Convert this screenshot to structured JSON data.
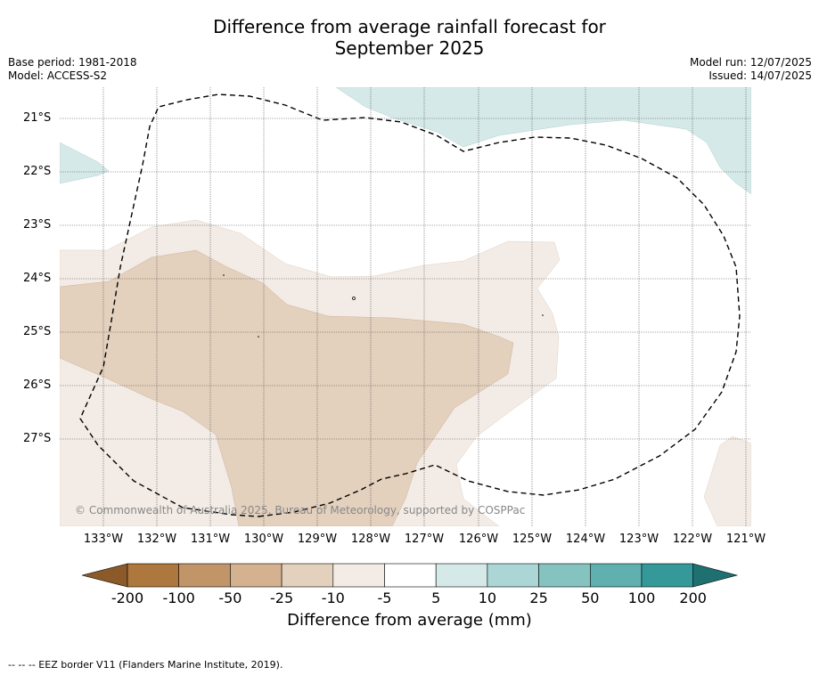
{
  "title": "Difference from average rainfall forecast for",
  "title_line2": "September 2025",
  "meta_left": {
    "base_period": "Base period: 1981-2018",
    "model": "Model: ACCESS-S2"
  },
  "meta_right": {
    "model_run": "Model run: 12/07/2025",
    "issued": "Issued: 14/07/2025"
  },
  "copyright": "© Commonwealth of Australia 2025, Bureau of Meteorology, supported by COSPPac",
  "lat_labels": [
    "21°S",
    "22°S",
    "23°S",
    "24°S",
    "25°S",
    "26°S",
    "27°S"
  ],
  "lon_labels": [
    "133°W",
    "132°W",
    "131°W",
    "130°W",
    "129°W",
    "128°W",
    "127°W",
    "126°W",
    "125°W",
    "124°W",
    "123°W",
    "122°W",
    "121°W"
  ],
  "colorbar": {
    "title": "Difference from average (mm)",
    "ticks": [
      "-200",
      "-100",
      "-50",
      "-25",
      "-10",
      "-5",
      "5",
      "10",
      "25",
      "50",
      "100",
      "200"
    ],
    "colors": [
      "#8c5a28",
      "#ae773d",
      "#c29569",
      "#d5b28f",
      "#e3d0bd",
      "#f3ebe5",
      "#ffffff",
      "#d5e9e8",
      "#acd6d5",
      "#85c3c1",
      "#5fb0ae",
      "#35999a",
      "#1f7070"
    ]
  },
  "shading": {
    "light_brown": "#f3ebe5",
    "mid_brown": "#e3d0bd",
    "light_teal": "#d5e9e8"
  },
  "footnote": "-- -- -- EEZ border V11 (Flanders Marine Institute, 2019)."
}
